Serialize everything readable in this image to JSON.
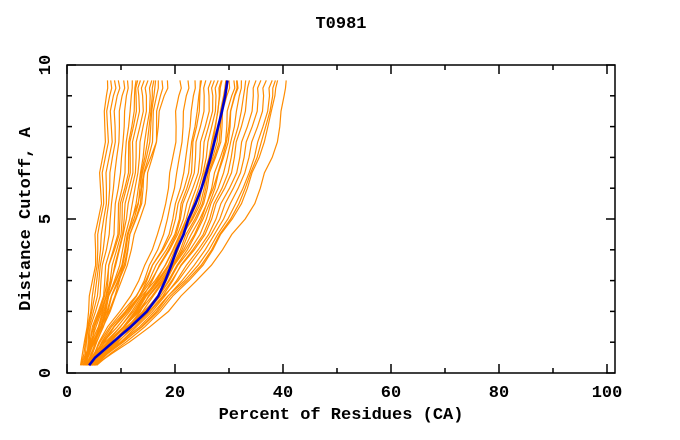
{
  "chart_data": {
    "type": "line",
    "title": "T0981",
    "xlabel": "Percent of Residues (CA)",
    "ylabel": "Distance Cutoff, A",
    "xlim": [
      0,
      101.5
    ],
    "ylim": [
      0,
      10
    ],
    "x_major_ticks": [
      0,
      20,
      40,
      60,
      80,
      100
    ],
    "x_minor_ticks": [
      10,
      30,
      50,
      70,
      90
    ],
    "y_major_ticks": [
      0,
      5,
      10
    ],
    "y_minor_ticks": [
      1,
      2,
      3,
      4,
      6,
      7,
      8,
      9
    ],
    "legend": "none",
    "grid": false,
    "colors": {
      "model_curves": "#ff8c00",
      "highlight_curve": "#0000cd",
      "frame": "#000000",
      "background": "#ffffff"
    },
    "cutoffs": [
      0.25,
      1,
      2,
      3,
      4,
      5,
      6,
      7,
      8,
      9,
      9.5
    ],
    "model_curves": [
      [
        2.5,
        3.2,
        4.0,
        4.7,
        5.3,
        5.8,
        6.2,
        6.6,
        7.0,
        7.3,
        7.5
      ],
      [
        2.6,
        3.4,
        4.4,
        5.1,
        5.7,
        6.2,
        6.7,
        7.1,
        7.5,
        7.9,
        8.1
      ],
      [
        2.7,
        3.6,
        4.6,
        5.5,
        6.2,
        6.8,
        7.3,
        7.8,
        8.2,
        8.6,
        8.8
      ],
      [
        2.9,
        3.9,
        4.9,
        5.9,
        6.7,
        7.3,
        7.9,
        8.4,
        8.9,
        9.3,
        9.5
      ],
      [
        3.1,
        4.1,
        5.3,
        6.3,
        7.3,
        8.0,
        8.6,
        9.2,
        9.7,
        10.2,
        10.5
      ],
      [
        2.9,
        4.3,
        5.8,
        7.0,
        8.0,
        8.8,
        9.5,
        10.1,
        10.6,
        11.0,
        11.2
      ],
      [
        3.3,
        4.6,
        6.2,
        7.6,
        8.6,
        9.5,
        10.2,
        10.8,
        11.4,
        11.9,
        12.1
      ],
      [
        3.0,
        4.2,
        6.0,
        7.4,
        8.8,
        9.8,
        10.7,
        11.4,
        12.0,
        12.5,
        12.8
      ],
      [
        3.0,
        4.4,
        6.4,
        8.0,
        9.2,
        10.2,
        11.0,
        11.7,
        12.3,
        12.8,
        13.1
      ],
      [
        3.4,
        4.9,
        6.8,
        8.3,
        9.6,
        10.6,
        11.5,
        12.2,
        12.8,
        13.3,
        13.6
      ],
      [
        3.2,
        4.5,
        6.6,
        8.2,
        9.7,
        11.0,
        12.0,
        12.8,
        13.5,
        14.0,
        14.3
      ],
      [
        3.5,
        5.1,
        7.2,
        8.8,
        10.3,
        11.6,
        12.6,
        13.4,
        14.1,
        14.7,
        15.0
      ],
      [
        3.1,
        4.7,
        7.0,
        9.0,
        10.7,
        12.1,
        13.2,
        14.1,
        14.8,
        15.4,
        15.7
      ],
      [
        3.2,
        4.8,
        7.1,
        9.1,
        10.8,
        12.4,
        13.5,
        14.4,
        15.2,
        15.8,
        16.1
      ],
      [
        3.7,
        5.4,
        7.6,
        9.6,
        11.3,
        12.7,
        13.8,
        14.7,
        15.5,
        16.1,
        16.4
      ],
      [
        3.3,
        5.0,
        7.4,
        9.4,
        11.2,
        12.8,
        14.1,
        15.1,
        15.9,
        16.6,
        16.9
      ],
      [
        3.6,
        5.5,
        8.0,
        10.1,
        11.9,
        13.5,
        14.8,
        15.8,
        16.6,
        17.3,
        17.6
      ],
      [
        3.4,
        5.2,
        7.8,
        9.7,
        10.9,
        12.0,
        13.8,
        15.5,
        16.9,
        18.0,
        18.6
      ],
      [
        3.5,
        5.9,
        9.8,
        13.3,
        15.8,
        17.6,
        18.8,
        19.6,
        20.2,
        20.7,
        20.9
      ],
      [
        3.7,
        6.4,
        10.8,
        14.3,
        16.8,
        18.6,
        19.9,
        20.8,
        21.5,
        22.1,
        22.4
      ],
      [
        3.9,
        6.9,
        11.3,
        14.8,
        17.6,
        19.6,
        21.0,
        22.0,
        22.8,
        23.4,
        23.7
      ],
      [
        3.6,
        6.1,
        10.3,
        14.6,
        17.8,
        20.1,
        21.7,
        22.8,
        23.7,
        24.4,
        24.7
      ],
      [
        3.8,
        6.6,
        11.0,
        15.2,
        18.4,
        20.8,
        22.2,
        23.2,
        24.0,
        24.6,
        24.9
      ],
      [
        4.1,
        7.4,
        12.3,
        15.8,
        18.8,
        21.0,
        22.6,
        23.8,
        24.7,
        25.4,
        25.7
      ],
      [
        3.8,
        6.7,
        11.6,
        15.6,
        19.0,
        21.6,
        23.3,
        24.6,
        25.6,
        26.3,
        26.7
      ],
      [
        4.3,
        7.9,
        12.8,
        16.6,
        19.6,
        22.1,
        23.9,
        25.2,
        26.2,
        27.0,
        27.3
      ],
      [
        3.9,
        7.1,
        12.0,
        16.3,
        19.7,
        22.4,
        24.4,
        25.8,
        26.8,
        27.6,
        28.0
      ],
      [
        4.0,
        7.5,
        12.6,
        16.8,
        20.0,
        22.8,
        24.8,
        26.3,
        27.4,
        28.2,
        28.6
      ],
      [
        4.4,
        8.4,
        13.6,
        17.3,
        20.6,
        23.1,
        25.0,
        26.4,
        27.5,
        28.3,
        28.7
      ],
      [
        4.0,
        7.7,
        13.0,
        17.0,
        20.3,
        23.3,
        25.4,
        27.0,
        28.1,
        29.0,
        29.4
      ],
      [
        4.2,
        8.0,
        13.2,
        17.6,
        21.0,
        23.7,
        25.7,
        27.3,
        28.4,
        29.3,
        29.7
      ],
      [
        4.5,
        8.7,
        14.0,
        18.0,
        21.3,
        24.0,
        26.0,
        27.5,
        28.7,
        29.6,
        30.0
      ],
      [
        4.2,
        8.1,
        13.4,
        17.8,
        21.6,
        24.6,
        26.8,
        28.4,
        29.6,
        30.5,
        30.9
      ],
      [
        4.7,
        9.1,
        14.6,
        18.8,
        22.3,
        25.2,
        27.4,
        29.0,
        30.2,
        31.1,
        31.5
      ],
      [
        4.6,
        9.0,
        14.4,
        18.4,
        21.9,
        24.9,
        27.1,
        28.8,
        30.0,
        31.0,
        31.4
      ],
      [
        4.3,
        8.5,
        14.2,
        19.0,
        22.8,
        25.8,
        28.0,
        29.7,
        31.0,
        31.9,
        32.3
      ],
      [
        4.9,
        9.5,
        15.2,
        19.6,
        23.3,
        26.4,
        28.7,
        30.4,
        31.7,
        32.7,
        33.1
      ],
      [
        4.5,
        8.9,
        14.8,
        19.4,
        23.6,
        26.8,
        29.2,
        31.0,
        32.3,
        33.3,
        33.8
      ],
      [
        5.1,
        9.9,
        15.8,
        20.3,
        24.3,
        27.6,
        30.1,
        32.0,
        33.4,
        34.5,
        35.0
      ],
      [
        4.7,
        9.3,
        15.4,
        20.6,
        24.8,
        28.3,
        30.8,
        32.8,
        34.3,
        35.4,
        35.9
      ],
      [
        5.3,
        10.4,
        16.6,
        21.3,
        25.6,
        29.0,
        31.7,
        33.7,
        35.3,
        36.4,
        36.9
      ],
      [
        4.9,
        9.9,
        16.2,
        21.8,
        26.3,
        29.8,
        32.6,
        34.7,
        36.3,
        37.5,
        38.0
      ],
      [
        5.0,
        10.2,
        16.9,
        22.2,
        26.8,
        30.3,
        33.0,
        35.2,
        36.8,
        38.1,
        38.6
      ],
      [
        5.5,
        10.9,
        17.3,
        22.6,
        27.0,
        30.6,
        33.4,
        35.6,
        37.2,
        38.5,
        39.0
      ],
      [
        5.2,
        11.5,
        18.8,
        24.0,
        28.8,
        33.0,
        35.8,
        38.0,
        39.4,
        40.2,
        40.6
      ]
    ],
    "highlight_curve": {
      "cutoffs": [
        0.25,
        0.5,
        1,
        1.5,
        2,
        2.5,
        3,
        3.5,
        4,
        4.5,
        5,
        5.5,
        6,
        6.5,
        7,
        7.5,
        8,
        8.5,
        9,
        9.5
      ],
      "percents": [
        4.1,
        5.2,
        8.5,
        11.8,
        14.8,
        16.9,
        18.2,
        19.3,
        20.3,
        21.6,
        22.5,
        23.8,
        24.9,
        25.8,
        26.6,
        27.3,
        28.0,
        28.7,
        29.3,
        29.7
      ]
    }
  }
}
